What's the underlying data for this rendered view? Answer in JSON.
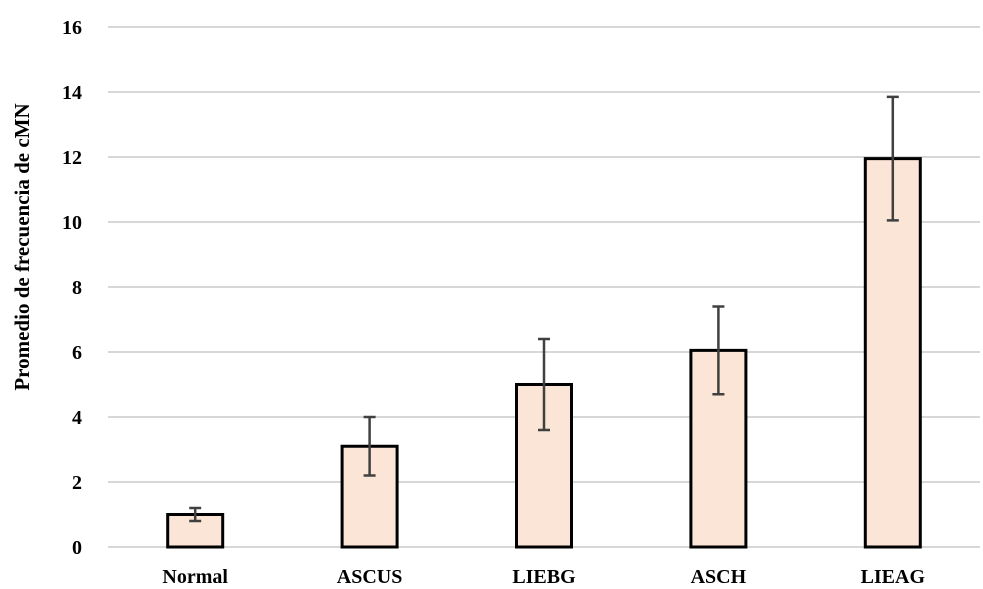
{
  "chart_data": {
    "type": "bar",
    "title": "",
    "xlabel": "",
    "ylabel": "Promedio de frecuencia de cMN",
    "categories": [
      "Normal",
      "ASCUS",
      "LIEBG",
      "ASCH",
      "LIEAG"
    ],
    "values": [
      1.0,
      3.1,
      5.0,
      6.05,
      11.95
    ],
    "error_bars": {
      "lower": [
        0.8,
        2.2,
        3.6,
        4.7,
        10.05
      ],
      "upper": [
        1.2,
        4.0,
        6.4,
        7.4,
        13.85
      ]
    },
    "ylim": [
      0,
      16
    ],
    "yticks": [
      0,
      2,
      4,
      6,
      8,
      10,
      12,
      14,
      16
    ],
    "grid": true,
    "legend": "none",
    "colors": {
      "bar_fill": "#FBE5D6",
      "bar_stroke": "#000000",
      "grid": "#BFBFBF",
      "error_bar": "#404040"
    }
  }
}
